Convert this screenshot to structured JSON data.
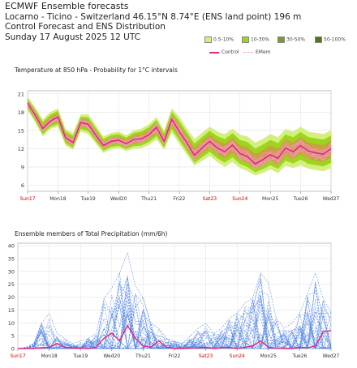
{
  "header": {
    "line1": "ECMWF Ensemble forecasts",
    "line2": "Locarno - Ticino - Switzerland 46.15°N 8.74°E (ENS land point) 196 m",
    "line3": "Control Forecast and ENS Distribution",
    "line4": "Sunday 17 August 2025 12 UTC"
  },
  "legend": {
    "swatches": [
      {
        "label": "0.5-10%",
        "color": "#d4ef80"
      },
      {
        "label": "10-30%",
        "color": "#9cd61c"
      },
      {
        "label": "30-50%",
        "color": "#7b9833"
      },
      {
        "label": "50-100%",
        "color": "#52751a"
      }
    ],
    "control_label": "Control",
    "emem_label": "EMem",
    "control_color": "#e0297f",
    "emem_color": "#f0a0c0"
  },
  "chart_data": [
    {
      "type": "line",
      "title": "Temperature at 850 hPa - Probability for 1°C intervals",
      "day_labels": [
        "Sun17",
        "Mon18",
        "Tue19",
        "Wed20",
        "Thu21",
        "Fri22",
        "Sat23",
        "Sun24",
        "Mon25",
        "Tue26",
        "Wed27"
      ],
      "weekend_days": [
        "Sun17",
        "Sat23",
        "Sun24"
      ],
      "weekend_color": "#d00000",
      "yticks": [
        6,
        9,
        12,
        15,
        18,
        21
      ],
      "ylim": [
        5,
        21.5
      ],
      "x_hours": [
        0,
        6,
        12,
        18,
        24,
        30,
        36,
        42,
        48,
        54,
        60,
        66,
        72,
        78,
        84,
        90,
        96,
        102,
        108,
        114,
        120,
        126,
        132,
        138,
        144,
        150,
        156,
        162,
        168,
        174,
        180,
        186,
        192,
        198,
        204,
        210,
        216,
        222,
        228,
        234,
        240
      ],
      "control": [
        19.5,
        17.5,
        15.3,
        16.5,
        17.2,
        13.8,
        13.0,
        16.3,
        16.0,
        14.2,
        12.5,
        13.2,
        13.4,
        12.8,
        13.5,
        13.6,
        14.3,
        15.5,
        13.2,
        16.8,
        14.8,
        13.0,
        10.9,
        12.1,
        13.2,
        12.1,
        11.5,
        12.6,
        11.2,
        10.7,
        9.5,
        10.2,
        11.0,
        10.4,
        12.1,
        11.5,
        12.5,
        11.6,
        11.3,
        11.1,
        12.0
      ],
      "spread_lo": [
        18.3,
        16.3,
        14.0,
        15.2,
        15.6,
        12.5,
        11.8,
        14.8,
        14.4,
        12.8,
        11.3,
        11.9,
        12.1,
        11.6,
        12.0,
        12.1,
        12.6,
        13.5,
        11.8,
        14.6,
        12.8,
        11.0,
        9.2,
        10.0,
        10.8,
        9.8,
        9.0,
        9.8,
        8.8,
        8.3,
        7.6,
        8.0,
        8.6,
        8.0,
        9.2,
        8.8,
        9.3,
        8.7,
        8.5,
        8.3,
        8.8
      ],
      "spread_hi": [
        20.5,
        18.8,
        16.8,
        18.0,
        18.6,
        15.2,
        14.6,
        17.6,
        17.6,
        15.8,
        14.0,
        14.6,
        14.8,
        14.2,
        15.0,
        15.3,
        16.0,
        17.2,
        15.0,
        18.6,
        17.2,
        15.3,
        13.6,
        14.6,
        15.6,
        14.8,
        14.4,
        15.3,
        14.3,
        14.0,
        13.0,
        13.6,
        14.4,
        13.9,
        15.2,
        14.8,
        15.6,
        14.8,
        14.6,
        14.4,
        15.0
      ]
    },
    {
      "type": "line",
      "title": "Ensemble members of Total Precipitation (mm/6h)",
      "day_labels": [
        "Sun17",
        "Mon18",
        "Tue19",
        "Wed20",
        "Thu21",
        "Fri22",
        "Sat23",
        "Sun24",
        "Mon25",
        "Tue26",
        "Wed27"
      ],
      "weekend_days": [
        "Sun17",
        "Sat23",
        "Sun24"
      ],
      "yticks": [
        0,
        5,
        10,
        15,
        20,
        25,
        30,
        35,
        40
      ],
      "ylim": [
        0,
        41
      ],
      "x_hours": [
        0,
        6,
        12,
        18,
        24,
        30,
        36,
        42,
        48,
        54,
        60,
        66,
        72,
        78,
        84,
        90,
        96,
        102,
        108,
        114,
        120,
        126,
        132,
        138,
        144,
        150,
        156,
        162,
        168,
        174,
        180,
        186,
        192,
        198,
        204,
        210,
        216,
        222,
        228,
        234,
        240
      ],
      "control": [
        0,
        0,
        0,
        0.3,
        0.5,
        2,
        0.5,
        0.2,
        0.1,
        0,
        0.5,
        4,
        6,
        3,
        9,
        4,
        1,
        0.5,
        3,
        0.5,
        0,
        0,
        0.2,
        0.3,
        0.5,
        0,
        0.3,
        0.5,
        0,
        0.5,
        1,
        3,
        0.5,
        0.2,
        0,
        0,
        0.5,
        0.3,
        1,
        6.5,
        7
      ],
      "members_max": [
        0,
        0.5,
        2,
        10,
        14,
        6,
        4,
        2,
        3,
        4,
        6,
        20,
        24,
        30,
        38,
        25,
        20,
        10,
        8,
        4,
        3,
        2,
        5,
        8,
        10,
        6,
        8,
        12,
        14,
        18,
        20,
        30,
        26,
        12,
        8,
        10,
        14,
        22,
        30,
        20,
        14
      ]
    }
  ]
}
